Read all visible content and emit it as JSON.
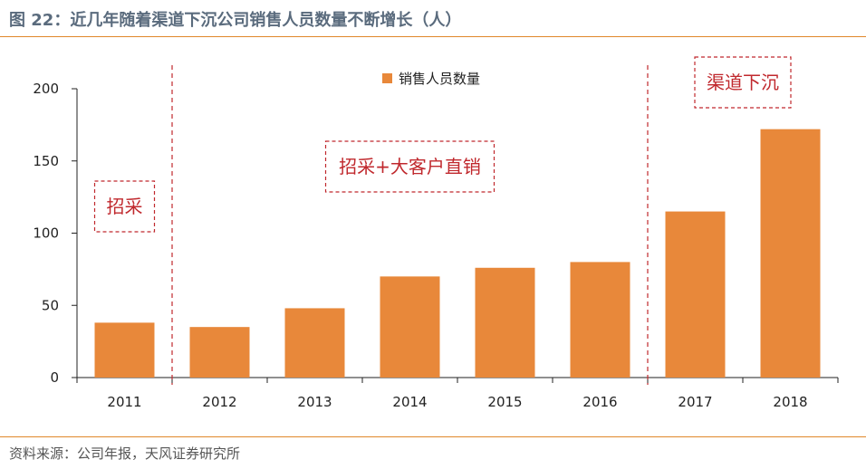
{
  "header": {
    "title": "图 22：近几年随着渠道下沉公司销售人员数量不断增长（人）"
  },
  "footer": {
    "source": "资料来源：公司年报，天风证券研究所"
  },
  "colors": {
    "bar": "#e8883a",
    "accent_line": "#e0882a",
    "annotation": "#c0282d",
    "axis": "#222222"
  },
  "chart_data": {
    "type": "bar",
    "categories": [
      "2011",
      "2012",
      "2013",
      "2014",
      "2015",
      "2016",
      "2017",
      "2018"
    ],
    "series": [
      {
        "name": "销售人员数量",
        "values": [
          38,
          35,
          48,
          70,
          76,
          80,
          115,
          172
        ]
      }
    ],
    "ylim": [
      0,
      200
    ],
    "yticks": [
      0,
      50,
      100,
      150,
      200
    ],
    "legend": "top-center",
    "grid": false,
    "annotations": [
      {
        "label": "招采",
        "span": [
          "2011",
          "2011"
        ]
      },
      {
        "label": "招采+大客户直销",
        "span": [
          "2012",
          "2016"
        ]
      },
      {
        "label": "渠道下沉",
        "span": [
          "2017",
          "2018"
        ]
      }
    ]
  }
}
